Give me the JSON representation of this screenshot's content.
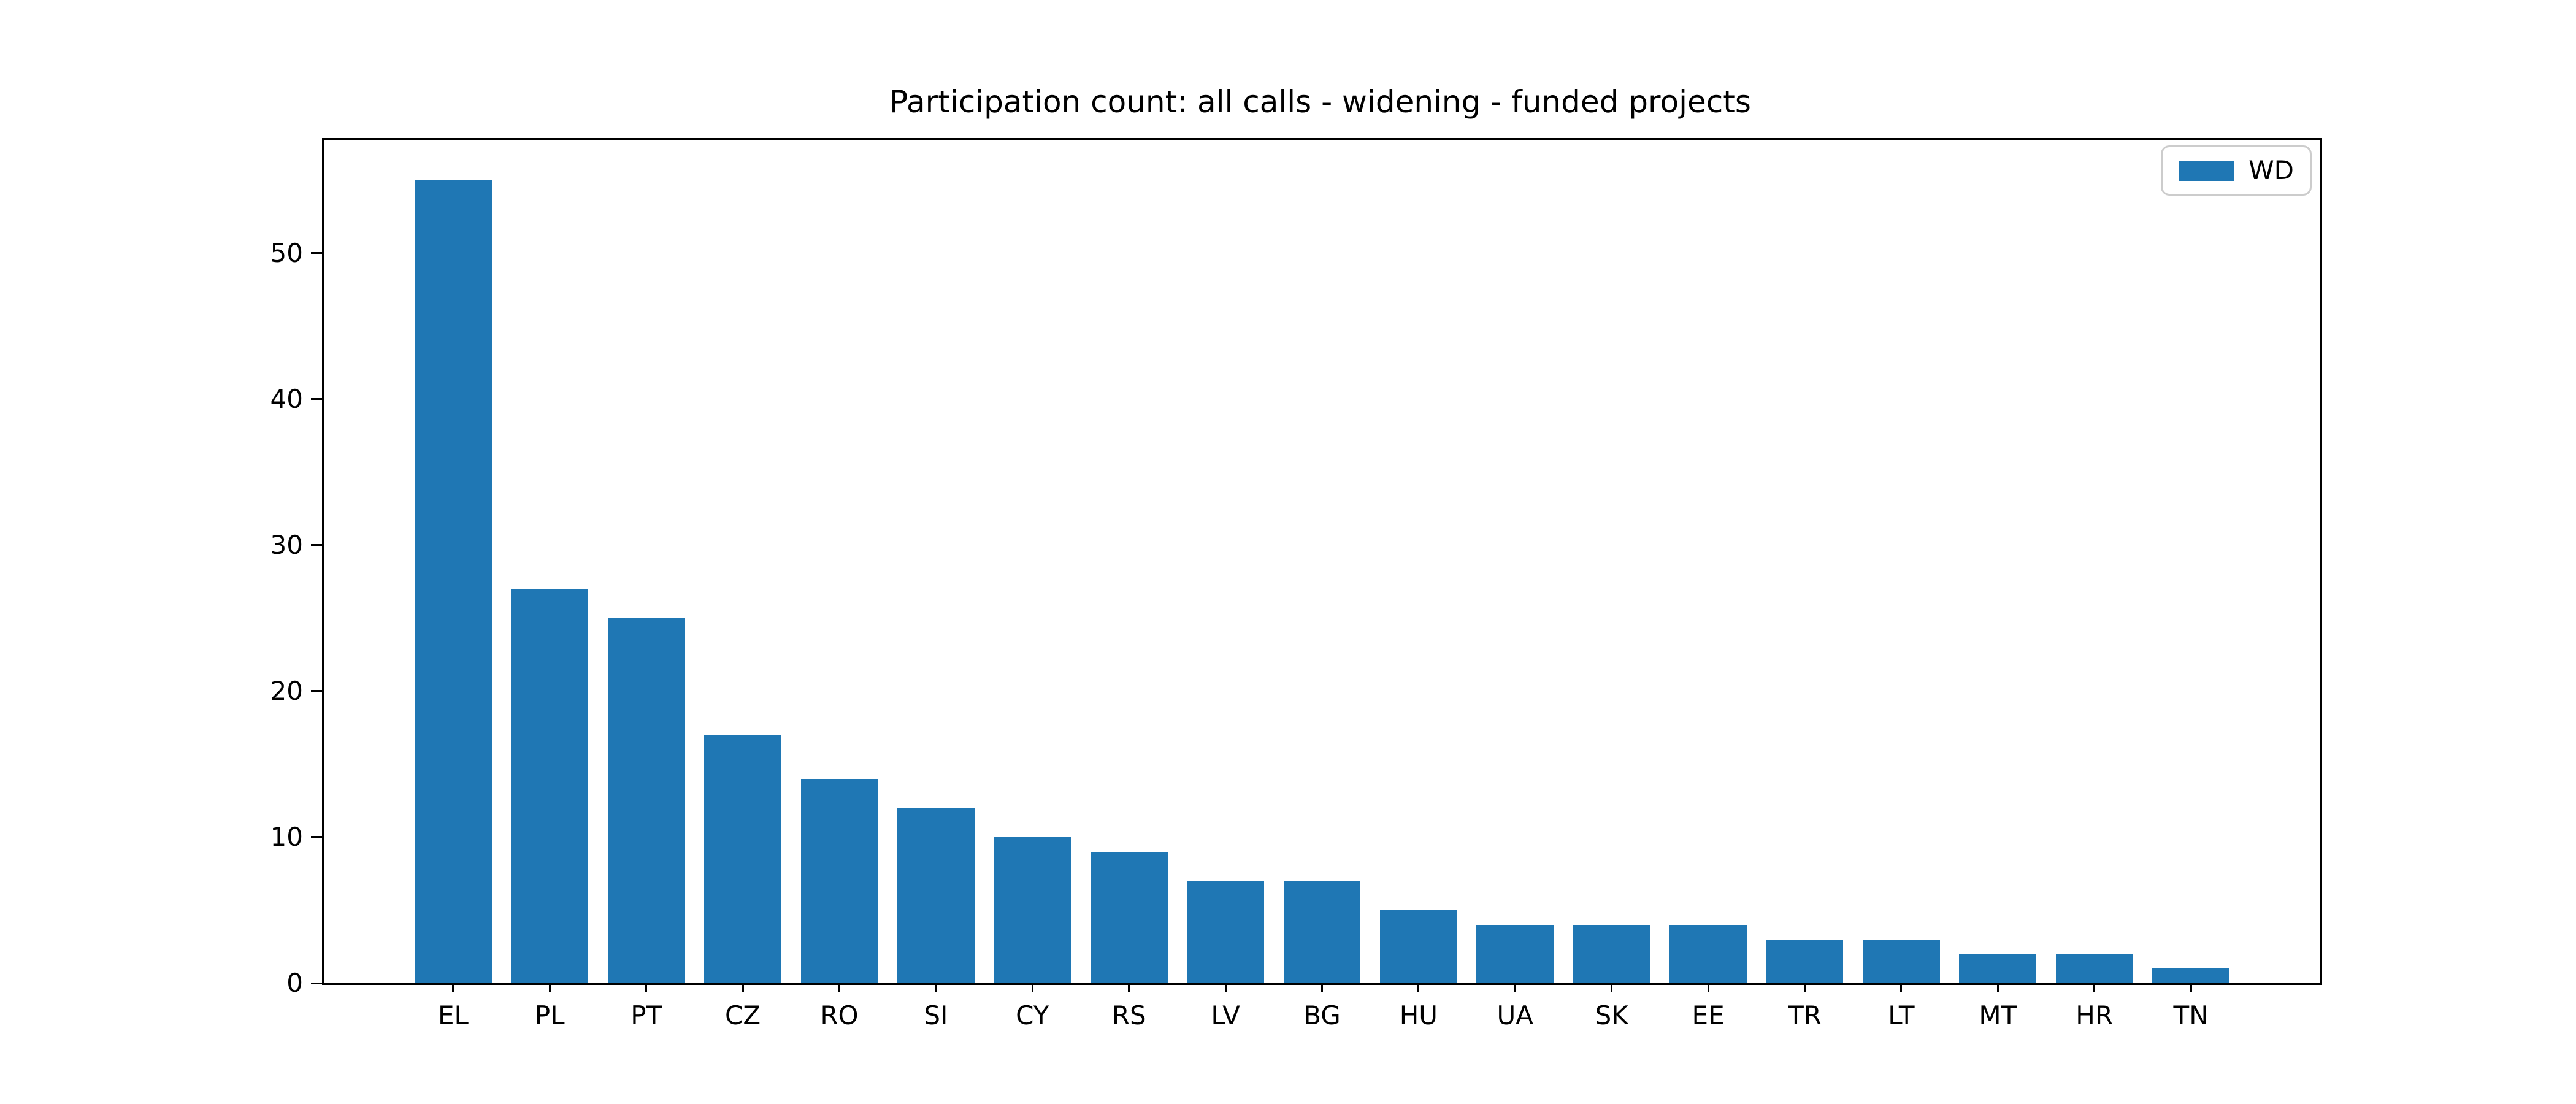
{
  "figure": {
    "background_color": "#ffffff",
    "text_color": "#000000",
    "spine_color": "#000000",
    "legend_border_color": "#cccccc"
  },
  "chart_data": {
    "type": "bar",
    "title": "Participation count: all calls - widening - funded projects",
    "xlabel": "",
    "ylabel": "",
    "categories": [
      "EL",
      "PL",
      "PT",
      "CZ",
      "RO",
      "SI",
      "CY",
      "RS",
      "LV",
      "BG",
      "HU",
      "UA",
      "SK",
      "EE",
      "TR",
      "LT",
      "MT",
      "HR",
      "TN"
    ],
    "series": [
      {
        "name": "WD",
        "color": "#1f77b4",
        "values": [
          55,
          27,
          25,
          17,
          14,
          12,
          10,
          9,
          7,
          7,
          5,
          4,
          4,
          4,
          3,
          3,
          2,
          2,
          1
        ]
      }
    ],
    "yticks": [
      0,
      10,
      20,
      30,
      40,
      50
    ],
    "ylim": [
      0,
      57.75
    ],
    "bar_width_fraction": 0.8,
    "grid": false,
    "legend": {
      "position": "upper right",
      "entries": [
        "WD"
      ]
    }
  }
}
